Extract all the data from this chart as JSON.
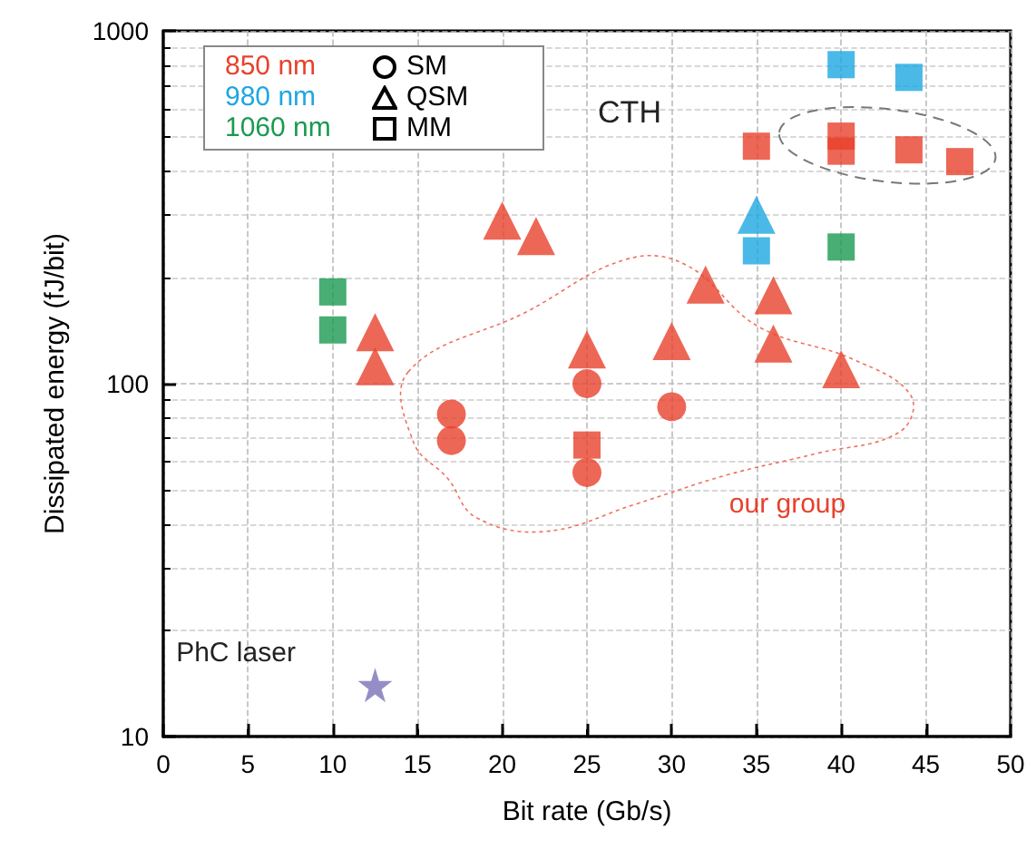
{
  "chart_data": {
    "type": "scatter",
    "xlabel": "Bit rate (Gb/s)",
    "ylabel": "Dissipated energy (fJ/bit)",
    "xlim": [
      0,
      50
    ],
    "xticks": [
      0,
      5,
      10,
      15,
      20,
      25,
      30,
      35,
      40,
      45,
      50
    ],
    "ylim": [
      10,
      1000
    ],
    "yticks": [
      10,
      100,
      1000
    ],
    "log": "y",
    "grid": true,
    "series": [
      {
        "marker": "circle",
        "color": "#e8412c",
        "x": [
          17,
          17,
          25,
          25,
          30
        ],
        "values": [
          82,
          69,
          100,
          56,
          86
        ]
      },
      {
        "marker": "triangle",
        "color": "#e8412c",
        "x": [
          12.5,
          12.5,
          20,
          22,
          25,
          30,
          32,
          36,
          36,
          40
        ],
        "values": [
          140,
          112,
          290,
          262,
          125,
          132,
          191,
          178,
          130,
          110
        ]
      },
      {
        "marker": "square",
        "color": "#e8412c",
        "x": [
          35,
          40,
          40,
          44,
          47,
          25
        ],
        "values": [
          471,
          503,
          456,
          460,
          426,
          67
        ]
      },
      {
        "marker": "triangle",
        "color": "#1ea7e1",
        "x": [
          35
        ],
        "values": [
          301
        ]
      },
      {
        "marker": "square",
        "color": "#1ea7e1",
        "x": [
          35,
          40,
          44
        ],
        "values": [
          238,
          802,
          738
        ]
      },
      {
        "marker": "square",
        "color": "#1a9a50",
        "x": [
          10,
          10,
          40
        ],
        "values": [
          182,
          142,
          244
        ]
      },
      {
        "marker": "star",
        "color": "#7b72b8",
        "x": [
          12.5
        ],
        "values": [
          14
        ]
      }
    ],
    "annotations": [
      "850 nm",
      "980 nm",
      "1060 nm",
      "SM",
      "QSM",
      "MM",
      "CTH",
      "our group",
      "PhC laser"
    ]
  }
}
